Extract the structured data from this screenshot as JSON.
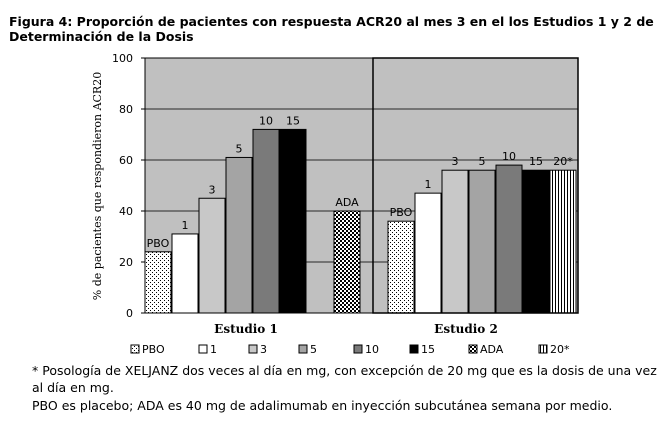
{
  "title": "Figura 4: Proporción de pacientes con respuesta ACR20 al mes 3 en el los Estudios 1 y 2 de Determinación de la Dosis",
  "footnotes": [
    "* Posología de XELJANZ dos veces al día en mg, con excepción de 20 mg que es la dosis de una vez al día en mg.",
    "PBO es placebo; ADA es 40 mg de adalimumab en inyección subcutánea semana por medio."
  ],
  "chart_data": {
    "type": "bar",
    "ylabel": "% de pacientes que respondieron ACR20",
    "ylim": [
      0,
      100
    ],
    "yticks": [
      0,
      20,
      40,
      60,
      80,
      100
    ],
    "grid": true,
    "legend_position": "bottom",
    "legend": [
      "PBO",
      "1",
      "3",
      "5",
      "10",
      "15",
      "ADA",
      "20*"
    ],
    "groups": [
      {
        "name": "Estudio 1",
        "bars": [
          {
            "label": "PBO",
            "series": "PBO",
            "value": 24
          },
          {
            "label": "1",
            "series": "1",
            "value": 31
          },
          {
            "label": "3",
            "series": "3",
            "value": 45
          },
          {
            "label": "5",
            "series": "5",
            "value": 61
          },
          {
            "label": "10",
            "series": "10",
            "value": 72
          },
          {
            "label": "15",
            "series": "15",
            "value": 72
          },
          {
            "label": "ADA",
            "series": "ADA",
            "value": 40
          }
        ]
      },
      {
        "name": "Estudio 2",
        "bars": [
          {
            "label": "PBO",
            "series": "PBO",
            "value": 36
          },
          {
            "label": "1",
            "series": "1",
            "value": 47
          },
          {
            "label": "3",
            "series": "3",
            "value": 56
          },
          {
            "label": "5",
            "series": "5",
            "value": 56
          },
          {
            "label": "10",
            "series": "10",
            "value": 58
          },
          {
            "label": "15",
            "series": "15",
            "value": 56
          },
          {
            "label": "20*",
            "series": "20*",
            "value": 56
          }
        ]
      }
    ]
  }
}
